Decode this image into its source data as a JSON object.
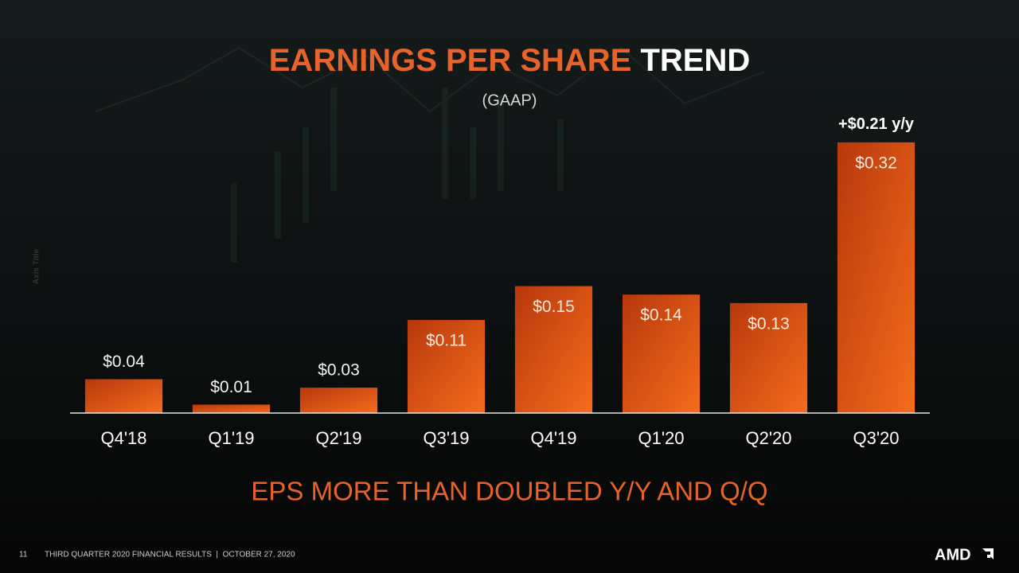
{
  "chart_data": {
    "type": "bar",
    "title": "EARNINGS PER SHARE",
    "title_highlight": "TREND",
    "subtitle": "(GAAP)",
    "y_axis_label": "Axis Title",
    "categories": [
      "Q4'18",
      "Q1'19",
      "Q2'19",
      "Q3'19",
      "Q4'19",
      "Q1'20",
      "Q2'20",
      "Q3'20"
    ],
    "values": [
      0.04,
      0.01,
      0.03,
      0.11,
      0.15,
      0.14,
      0.13,
      0.32
    ],
    "value_labels": [
      "$0.04",
      "$0.01",
      "$0.03",
      "$0.11",
      "$0.15",
      "$0.14",
      "$0.13",
      "$0.32"
    ],
    "annotation": "+$0.21 y/y",
    "color": "#e8561a",
    "ylim": [
      0,
      0.35
    ],
    "grid": false,
    "takeaway": "EPS MORE THAN DOUBLED Y/Y AND Q/Q"
  },
  "footer": {
    "page_number": "11",
    "text": "THIRD QUARTER 2020 FINANCIAL RESULTS  |  OCTOBER 27, 2020",
    "logo": "AMD"
  }
}
